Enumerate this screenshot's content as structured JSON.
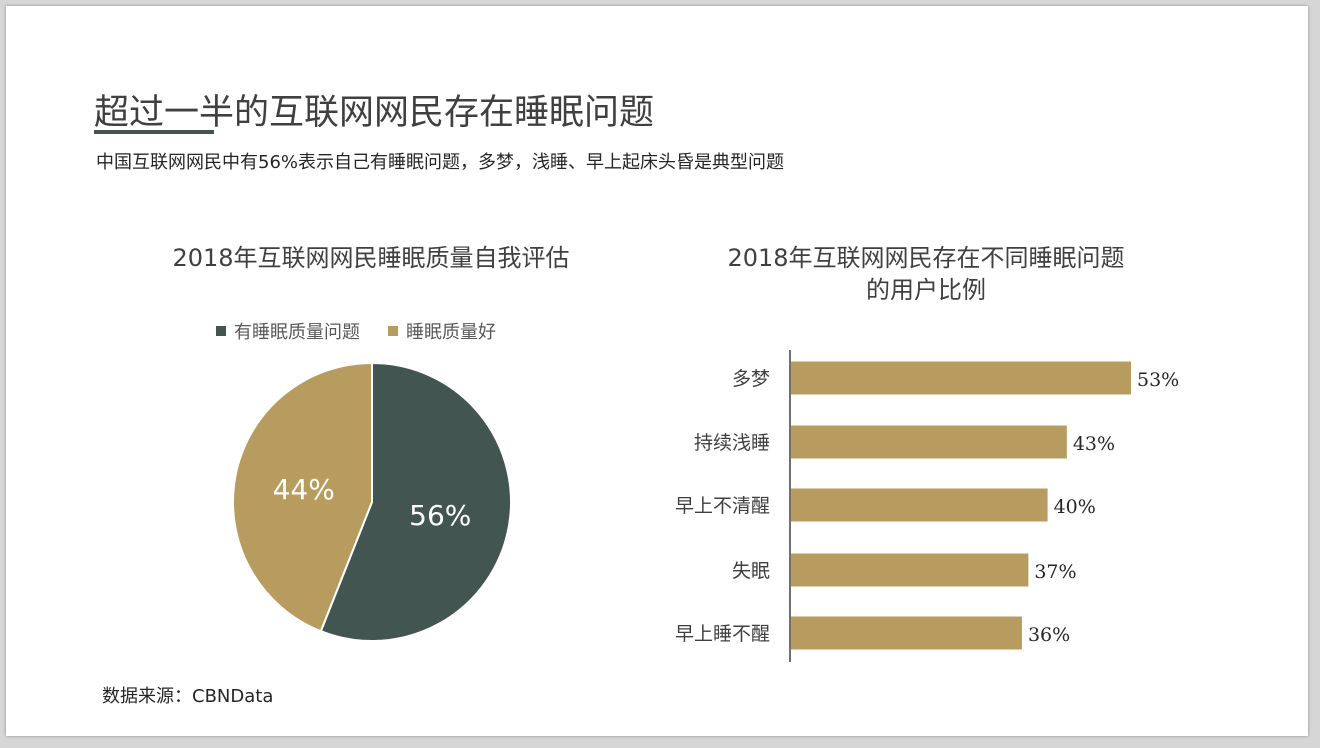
{
  "slide": {
    "title": "超过一半的互联网网民存在睡眠问题",
    "subtitle": "中国互联网网民中有56%表示自己有睡眠问题，多梦，浅睡、早上起床头昏是典型问题",
    "source": "数据来源：CBNData"
  },
  "colors": {
    "dark": "#435551",
    "gold": "#b89c5f",
    "accent_underline": "#44534f"
  },
  "chart_data": [
    {
      "type": "pie",
      "title": "2018年互联网网民睡眠质量自我评估",
      "legend_position": "top",
      "categories": [
        "有睡眠质量问题",
        "睡眠质量好"
      ],
      "values": [
        56,
        44
      ],
      "labels": [
        "56%",
        "44%"
      ],
      "colors": [
        "#435551",
        "#b89c5f"
      ]
    },
    {
      "type": "bar",
      "orientation": "horizontal",
      "title_lines": [
        "2018年互联网网民存在不同睡眠问题",
        "的用户比例"
      ],
      "categories": [
        "多梦",
        "持续浅睡",
        "早上不清醒",
        "失眠",
        "早上睡不醒"
      ],
      "values": [
        53,
        43,
        40,
        37,
        36
      ],
      "labels": [
        "53%",
        "43%",
        "40%",
        "37%",
        "36%"
      ],
      "color": "#b89c5f",
      "xlim": [
        0,
        60
      ],
      "grid": false
    }
  ]
}
